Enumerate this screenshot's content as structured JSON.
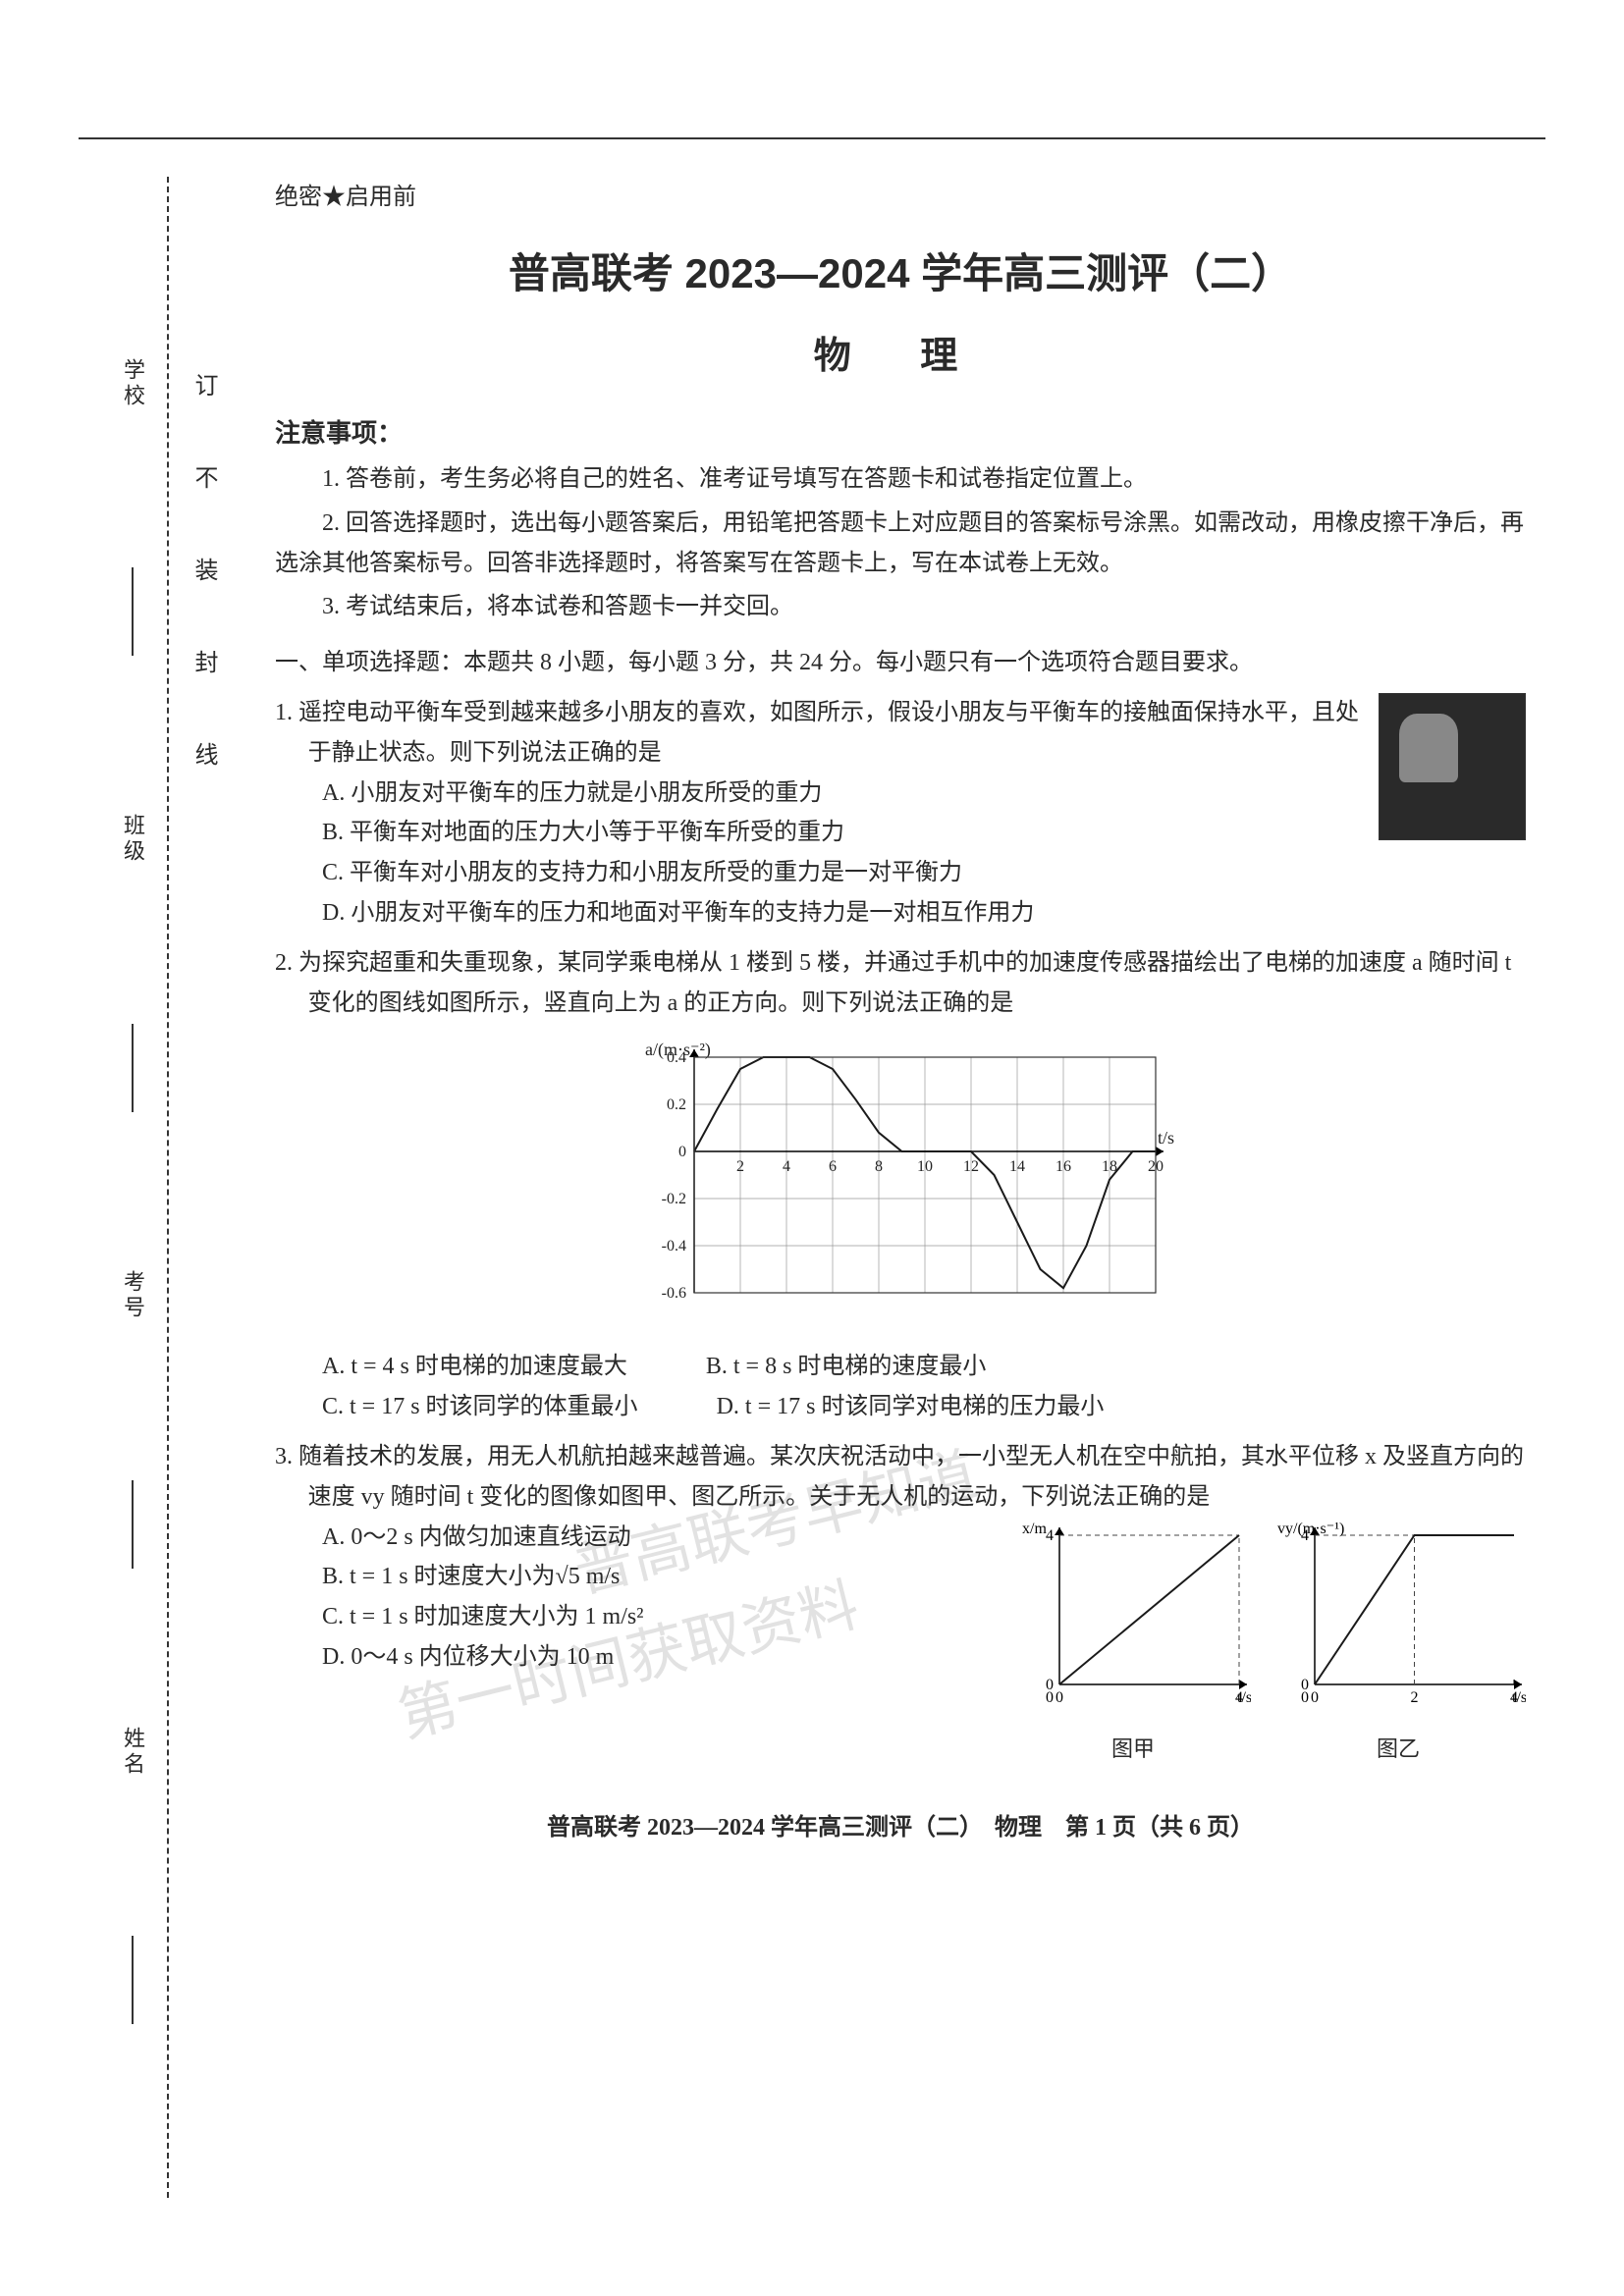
{
  "colors": {
    "ink": "#2a2a2a",
    "paper": "#ffffff",
    "watermark": "rgba(150,150,150,0.28)",
    "axis": "#333333"
  },
  "binding": {
    "vertical_hint": "订 不 装 封 线",
    "fields": [
      "学校",
      "班级",
      "考号",
      "姓名"
    ]
  },
  "header": {
    "secret": "绝密★启用前",
    "title": "普高联考 2023—2024 学年高三测评（二）",
    "subject": "物 理"
  },
  "notice": {
    "head": "注意事项：",
    "items": [
      "1. 答卷前，考生务必将自己的姓名、准考证号填写在答题卡和试卷指定位置上。",
      "2. 回答选择题时，选出每小题答案后，用铅笔把答题卡上对应题目的答案标号涂黑。如需改动，用橡皮擦干净后，再选涂其他答案标号。回答非选择题时，将答案写在答题卡上，写在本试卷上无效。",
      "3. 考试结束后，将本试卷和答题卡一并交回。"
    ]
  },
  "section1": "一、单项选择题：本题共 8 小题，每小题 3 分，共 24 分。每小题只有一个选项符合题目要求。",
  "q1": {
    "stem": "1. 遥控电动平衡车受到越来越多小朋友的喜欢，如图所示，假设小朋友与平衡车的接触面保持水平，且处于静止状态。则下列说法正确的是",
    "A": "A. 小朋友对平衡车的压力就是小朋友所受的重力",
    "B": "B. 平衡车对地面的压力大小等于平衡车所受的重力",
    "C": "C. 平衡车对小朋友的支持力和小朋友所受的重力是一对平衡力",
    "D": "D. 小朋友对平衡车的压力和地面对平衡车的支持力是一对相互作用力"
  },
  "q2": {
    "stem": "2. 为探究超重和失重现象，某同学乘电梯从 1 楼到 5 楼，并通过手机中的加速度传感器描绘出了电梯的加速度 a 随时间 t 变化的图线如图所示，竖直向上为 a 的正方向。则下列说法正确的是",
    "chart": {
      "type": "line",
      "xlabel": "t/s",
      "ylabel": "a/(m·s⁻²)",
      "xlim": [
        0,
        20
      ],
      "ylim": [
        -0.6,
        0.4
      ],
      "xticks": [
        2,
        4,
        6,
        8,
        10,
        12,
        14,
        16,
        18,
        20
      ],
      "yticks": [
        -0.6,
        -0.4,
        -0.2,
        0,
        0.2,
        0.4
      ],
      "grid_color": "#999999",
      "line_color": "#1a1a1a",
      "line_width": 2,
      "background": "#ffffff",
      "points": [
        [
          0,
          0
        ],
        [
          1,
          0.18
        ],
        [
          2,
          0.35
        ],
        [
          3,
          0.4
        ],
        [
          4,
          0.4
        ],
        [
          5,
          0.4
        ],
        [
          6,
          0.35
        ],
        [
          7,
          0.22
        ],
        [
          8,
          0.08
        ],
        [
          9,
          0
        ],
        [
          10,
          0
        ],
        [
          11,
          0
        ],
        [
          12,
          0
        ],
        [
          13,
          -0.1
        ],
        [
          14,
          -0.3
        ],
        [
          15,
          -0.5
        ],
        [
          16,
          -0.58
        ],
        [
          17,
          -0.4
        ],
        [
          18,
          -0.12
        ],
        [
          19,
          0
        ],
        [
          20,
          0
        ]
      ]
    },
    "A": "A. t = 4 s 时电梯的加速度最大",
    "B": "B. t = 8 s 时电梯的速度最小",
    "C": "C. t = 17 s 时该同学的体重最小",
    "D": "D. t = 17 s 时该同学对电梯的压力最小"
  },
  "q3": {
    "stem": "3. 随着技术的发展，用无人机航拍越来越普遍。某次庆祝活动中，一小型无人机在空中航拍，其水平位移 x 及竖直方向的速度 vy 随时间 t 变化的图像如图甲、图乙所示。关于无人机的运动，下列说法正确的是",
    "A": "A. 0～2 s 内做匀加速直线运动",
    "B": "B. t = 1 s 时速度大小为√5 m/s",
    "C": "C. t = 1 s 时加速度大小为 1 m/s²",
    "D": "D. 0～4 s 内位移大小为 10 m",
    "fig_a": {
      "type": "line",
      "caption": "图甲",
      "xlabel": "t/s",
      "ylabel": "x/m",
      "xlim": [
        0,
        4
      ],
      "ylim": [
        0,
        4
      ],
      "xticks": [
        0,
        4
      ],
      "yticks": [
        0,
        4
      ],
      "line_color": "#1a1a1a",
      "points": [
        [
          0,
          0
        ],
        [
          4,
          4
        ]
      ]
    },
    "fig_b": {
      "type": "line",
      "caption": "图乙",
      "xlabel": "t/s",
      "ylabel": "vy/(m·s⁻¹)",
      "xlim": [
        0,
        4
      ],
      "ylim": [
        0,
        4
      ],
      "xticks": [
        0,
        2,
        4
      ],
      "yticks": [
        0,
        4
      ],
      "line_color": "#1a1a1a",
      "points": [
        [
          0,
          0
        ],
        [
          2,
          4
        ],
        [
          4,
          4
        ]
      ]
    }
  },
  "watermarks": {
    "line1": "普高联考早知道",
    "line2": "第一时间获取资料"
  },
  "footer": "普高联考 2023—2024 学年高三测评（二）　物理　第 1 页（共 6 页）"
}
